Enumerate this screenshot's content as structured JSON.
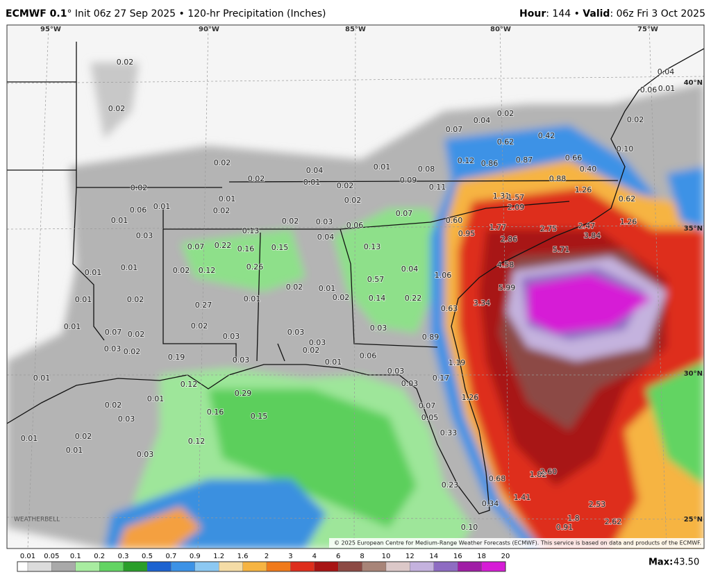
{
  "header": {
    "model": "ECMWF 0.1",
    "subtitle": "° Init 06z 27 Sep 2025 • 120-hr Precipitation (Inches)",
    "hour_label": "Hour",
    "hour_value": ": 144 • ",
    "valid_label": "Valid",
    "valid_value": ": 06z Fri 3 Oct 2025"
  },
  "map": {
    "longitude_labels": [
      "95°W",
      "90°W",
      "85°W",
      "80°W",
      "75°W"
    ],
    "latitude_labels": [
      "40°N",
      "35°N",
      "30°N",
      "25°N"
    ],
    "logo": "WEATHERBELL",
    "copyright": "© 2025 European Centre for Medium-Range Weather Forecasts (ECMWF). This service is based on data and products of the ECMWF.",
    "values": [
      "0.02",
      "0.02",
      "0.02",
      "0.02",
      "0.06",
      "0.01",
      "0.01",
      "0.03",
      "0.01",
      "0.01",
      "0.01",
      "0.02",
      "0.01",
      "0.07",
      "0.02",
      "0.03",
      "0.02",
      "0.01",
      "0.02",
      "0.03",
      "0.01",
      "0.02",
      "0.01",
      "0.03",
      "0.01",
      "0.12",
      "0.16",
      "0.15",
      "0.29",
      "0.12",
      "0.19",
      "0.03",
      "0.03",
      "0.02",
      "0.27",
      "0.02",
      "0.12",
      "0.07",
      "0.22",
      "0.16",
      "0.26",
      "0.15",
      "0.13",
      "0.02",
      "0.03",
      "0.04",
      "0.06",
      "0.02",
      "0.01",
      "0.02",
      "0.04",
      "0.01",
      "0.02",
      "0.02",
      "0.01",
      "0.08",
      "0.11",
      "0.07",
      "0.13",
      "0.04",
      "0.57",
      "0.14",
      "0.22",
      "0.01",
      "0.02",
      "0.01",
      "0.02",
      "0.03",
      "0.03",
      "0.02",
      "0.01",
      "0.06",
      "0.03",
      "0.03",
      "0.03",
      "0.17",
      "0.89",
      "1.19",
      "1.26",
      "0.07",
      "0.05",
      "0.33",
      "0.23",
      "0.68",
      "0.34",
      "0.10",
      "1.41",
      "1.82",
      "2.60",
      "2.53",
      "2.62",
      "1.8",
      "0.91",
      "1.06",
      "0.63",
      "3.34",
      "5.99",
      "4.58",
      "2.86",
      "1.77",
      "2.75",
      "2.47",
      "3.84",
      "5.71",
      "2.09",
      "1.31",
      "1.57",
      "1.26",
      "0.88",
      "0.62",
      "1.26",
      "0.95",
      "0.60",
      "0.87",
      "0.86",
      "0.12",
      "0.62",
      "0.42",
      "0.66",
      "0.40",
      "0.10",
      "0.07",
      "0.04",
      "0.02",
      "0.02",
      "0.04",
      "0.06",
      "0.01",
      "0.09"
    ]
  },
  "legend": {
    "ticks": [
      "0.01",
      "0.05",
      "0.1",
      "0.2",
      "0.3",
      "0.5",
      "0.7",
      "0.9",
      "1.2",
      "1.6",
      "2",
      "3",
      "4",
      "6",
      "8",
      "10",
      "12",
      "14",
      "16",
      "18",
      "20"
    ],
    "colors": [
      "#ffffff",
      "#dcdcdc",
      "#a9a9a9",
      "#a8eca0",
      "#62d462",
      "#2a9e2a",
      "#1c62d0",
      "#3c92e6",
      "#8cc8f2",
      "#f4dca6",
      "#f6b442",
      "#f07a1a",
      "#de2e1c",
      "#a81414",
      "#8c4a44",
      "#a88478",
      "#dcc8c8",
      "#c4b2de",
      "#8e6cc2",
      "#a01ea6",
      "#d61cd6"
    ],
    "max_label": "Max:",
    "max_value": "43.50"
  }
}
